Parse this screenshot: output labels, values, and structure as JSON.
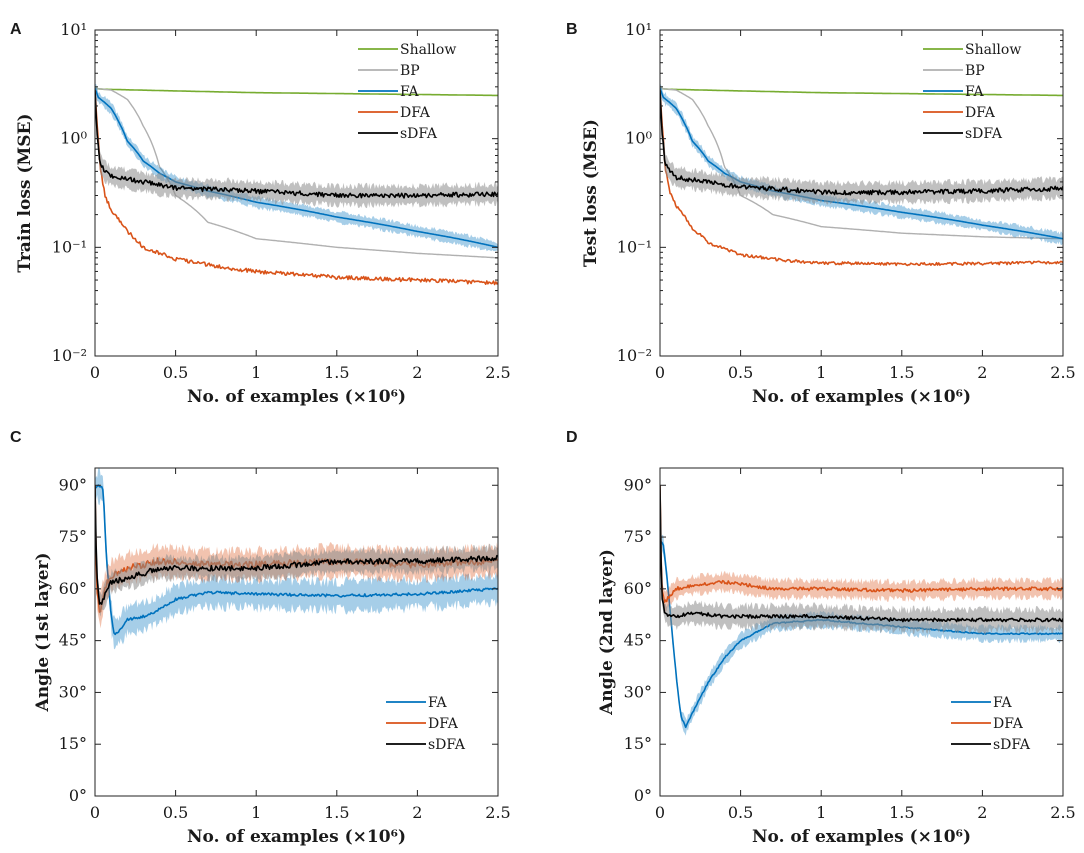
{
  "chart_data": [
    {
      "panel": "A",
      "type": "line",
      "yscale": "log",
      "xlabel": "No. of examples (×10⁶)",
      "ylabel": "Train loss (MSE)",
      "xlim": [
        0,
        2.5
      ],
      "ylim": [
        0.01,
        10
      ],
      "xticks": [
        0,
        0.5,
        1,
        1.5,
        2,
        2.5
      ],
      "xtick_labels": [
        "0",
        "0.5",
        "1",
        "1.5",
        "2",
        "2.5"
      ],
      "yticks": [
        0.01,
        0.1,
        1,
        10
      ],
      "ytick_labels": [
        "10⁻²",
        "10⁻¹",
        "10⁰",
        "10¹"
      ],
      "legend_position": "top-right",
      "series": [
        {
          "name": "Shallow",
          "color": "#77ac30",
          "x": [
            0,
            0.05,
            0.5,
            1,
            1.5,
            2,
            2.5
          ],
          "y": [
            2.9,
            2.85,
            2.75,
            2.65,
            2.6,
            2.55,
            2.5
          ],
          "band": 0,
          "noise": 0
        },
        {
          "name": "BP",
          "color": "#b0b0b0",
          "x": [
            0,
            0.1,
            0.2,
            0.3,
            0.4,
            0.5,
            0.7,
            1,
            1.5,
            2,
            2.5
          ],
          "y": [
            2.9,
            2.8,
            2.3,
            1.3,
            0.55,
            0.3,
            0.17,
            0.12,
            0.1,
            0.088,
            0.08
          ],
          "band": 0,
          "noise": 0
        },
        {
          "name": "FA",
          "color": "#0072bd",
          "x": [
            0,
            0.02,
            0.1,
            0.15,
            0.2,
            0.3,
            0.4,
            0.5,
            0.7,
            1,
            1.5,
            2,
            2.5
          ],
          "y": [
            2.9,
            2.4,
            1.9,
            1.4,
            0.95,
            0.62,
            0.48,
            0.4,
            0.33,
            0.26,
            0.19,
            0.14,
            0.1
          ],
          "band": 0.12,
          "noise": 0
        },
        {
          "name": "DFA",
          "color": "#d95319",
          "x": [
            0,
            0.01,
            0.03,
            0.06,
            0.1,
            0.2,
            0.3,
            0.5,
            0.8,
            1,
            1.5,
            2,
            2.5
          ],
          "y": [
            2.8,
            1.5,
            0.55,
            0.3,
            0.22,
            0.14,
            0.1,
            0.078,
            0.065,
            0.06,
            0.053,
            0.05,
            0.047
          ],
          "band": 0,
          "noise": 0.04
        },
        {
          "name": "sDFA",
          "color": "#000000",
          "x": [
            0,
            0.01,
            0.03,
            0.06,
            0.1,
            0.3,
            0.5,
            0.8,
            1,
            1.5,
            2,
            2.5
          ],
          "y": [
            2.8,
            1.2,
            0.6,
            0.5,
            0.45,
            0.4,
            0.35,
            0.34,
            0.33,
            0.3,
            0.3,
            0.31
          ],
          "band": 0.22,
          "noise": 0.05
        }
      ]
    },
    {
      "panel": "B",
      "type": "line",
      "yscale": "log",
      "xlabel": "No. of examples (×10⁶)",
      "ylabel": "Test loss (MSE)",
      "xlim": [
        0,
        2.5
      ],
      "ylim": [
        0.01,
        10
      ],
      "xticks": [
        0,
        0.5,
        1,
        1.5,
        2,
        2.5
      ],
      "xtick_labels": [
        "0",
        "0.5",
        "1",
        "1.5",
        "2",
        "2.5"
      ],
      "yticks": [
        0.01,
        0.1,
        1,
        10
      ],
      "ytick_labels": [
        "10⁻²",
        "10⁻¹",
        "10⁰",
        "10¹"
      ],
      "legend_position": "top-right",
      "series": [
        {
          "name": "Shallow",
          "color": "#77ac30",
          "x": [
            0,
            0.05,
            0.5,
            1,
            1.5,
            2,
            2.5
          ],
          "y": [
            2.9,
            2.85,
            2.75,
            2.65,
            2.6,
            2.55,
            2.5
          ],
          "band": 0,
          "noise": 0
        },
        {
          "name": "BP",
          "color": "#b0b0b0",
          "x": [
            0,
            0.1,
            0.2,
            0.3,
            0.4,
            0.5,
            0.7,
            1,
            1.5,
            2,
            2.5
          ],
          "y": [
            2.9,
            2.8,
            2.3,
            1.3,
            0.55,
            0.3,
            0.2,
            0.155,
            0.135,
            0.125,
            0.12
          ],
          "band": 0,
          "noise": 0
        },
        {
          "name": "FA",
          "color": "#0072bd",
          "x": [
            0,
            0.02,
            0.1,
            0.15,
            0.2,
            0.3,
            0.4,
            0.5,
            0.7,
            1,
            1.5,
            2,
            2.5
          ],
          "y": [
            2.9,
            2.4,
            1.9,
            1.4,
            0.95,
            0.62,
            0.48,
            0.4,
            0.33,
            0.27,
            0.21,
            0.16,
            0.12
          ],
          "band": 0.12,
          "noise": 0
        },
        {
          "name": "DFA",
          "color": "#d95319",
          "x": [
            0,
            0.01,
            0.03,
            0.06,
            0.1,
            0.2,
            0.3,
            0.5,
            0.8,
            1,
            1.5,
            2,
            2.5
          ],
          "y": [
            2.8,
            1.5,
            0.55,
            0.32,
            0.24,
            0.15,
            0.11,
            0.085,
            0.075,
            0.072,
            0.07,
            0.071,
            0.073
          ],
          "band": 0,
          "noise": 0.03
        },
        {
          "name": "sDFA",
          "color": "#000000",
          "x": [
            0,
            0.01,
            0.03,
            0.06,
            0.1,
            0.3,
            0.5,
            0.8,
            1,
            1.5,
            2,
            2.5
          ],
          "y": [
            2.8,
            1.2,
            0.6,
            0.5,
            0.44,
            0.4,
            0.36,
            0.34,
            0.32,
            0.32,
            0.33,
            0.35
          ],
          "band": 0.22,
          "noise": 0.05
        }
      ]
    },
    {
      "panel": "C",
      "type": "line",
      "yscale": "linear",
      "xlabel": "No. of examples (×10⁶)",
      "ylabel": "Angle (1st layer)",
      "xlim": [
        0,
        2.5
      ],
      "ylim": [
        0,
        95
      ],
      "xticks": [
        0,
        0.5,
        1,
        1.5,
        2,
        2.5
      ],
      "xtick_labels": [
        "0",
        "0.5",
        "1",
        "1.5",
        "2",
        "2.5"
      ],
      "yticks": [
        0,
        15,
        30,
        45,
        60,
        75,
        90
      ],
      "ytick_labels": [
        "0°",
        "15°",
        "30°",
        "45°",
        "60°",
        "75°",
        "90°"
      ],
      "legend_position": "bottom-right",
      "series": [
        {
          "name": "FA",
          "color": "#0072bd",
          "x": [
            0,
            0.02,
            0.05,
            0.07,
            0.1,
            0.12,
            0.15,
            0.2,
            0.3,
            0.4,
            0.5,
            0.7,
            1,
            1.5,
            2,
            2.5
          ],
          "y": [
            89,
            90,
            89,
            70,
            52,
            47,
            48,
            51,
            52,
            54,
            57,
            59,
            58.5,
            58,
            58.5,
            60
          ],
          "band": 4,
          "noise": 0.4
        },
        {
          "name": "DFA",
          "color": "#d95319",
          "x": [
            0,
            0.01,
            0.03,
            0.06,
            0.1,
            0.2,
            0.4,
            0.7,
            1,
            1.5,
            2,
            2.5
          ],
          "y": [
            90,
            60,
            53,
            60,
            64,
            66,
            68,
            67,
            67,
            68,
            67,
            68
          ],
          "band": 4,
          "noise": 1
        },
        {
          "name": "sDFA",
          "color": "#000000",
          "x": [
            0,
            0.01,
            0.03,
            0.06,
            0.1,
            0.2,
            0.4,
            0.7,
            1,
            1.5,
            2,
            2.5
          ],
          "y": [
            90,
            65,
            55,
            58,
            62,
            63,
            66,
            66,
            66,
            68,
            68,
            69
          ],
          "band": 3,
          "noise": 0.8
        }
      ]
    },
    {
      "panel": "D",
      "type": "line",
      "yscale": "linear",
      "xlabel": "No. of examples (×10⁶)",
      "ylabel": "Angle (2nd layer)",
      "xlim": [
        0,
        2.5
      ],
      "ylim": [
        0,
        95
      ],
      "xticks": [
        0,
        0.5,
        1,
        1.5,
        2,
        2.5
      ],
      "xtick_labels": [
        "0",
        "0.5",
        "1",
        "1.5",
        "2",
        "2.5"
      ],
      "yticks": [
        0,
        15,
        30,
        45,
        60,
        75,
        90
      ],
      "ytick_labels": [
        "0°",
        "15°",
        "30°",
        "45°",
        "60°",
        "75°",
        "90°"
      ],
      "legend_position": "bottom-right",
      "series": [
        {
          "name": "FA",
          "color": "#0072bd",
          "x": [
            0,
            0.02,
            0.04,
            0.07,
            0.1,
            0.13,
            0.16,
            0.2,
            0.3,
            0.4,
            0.5,
            0.7,
            1,
            1.5,
            2,
            2.5
          ],
          "y": [
            74,
            73,
            65,
            50,
            35,
            23,
            20,
            24,
            33,
            40,
            45,
            50,
            51,
            49,
            47,
            47
          ],
          "band": 2,
          "noise": 0.2
        },
        {
          "name": "DFA",
          "color": "#d95319",
          "x": [
            0,
            0.01,
            0.03,
            0.06,
            0.1,
            0.2,
            0.4,
            0.7,
            1,
            1.5,
            2,
            2.5
          ],
          "y": [
            90,
            60,
            56,
            58,
            60,
            61,
            62,
            60,
            60,
            59.5,
            60,
            60
          ],
          "band": 2.5,
          "noise": 0.5
        },
        {
          "name": "sDFA",
          "color": "#000000",
          "x": [
            0,
            0.01,
            0.03,
            0.06,
            0.1,
            0.2,
            0.4,
            0.7,
            1,
            1.5,
            2,
            2.5
          ],
          "y": [
            90,
            58,
            53,
            52,
            52,
            53,
            52,
            52,
            52,
            51,
            51,
            51
          ],
          "band": 3,
          "noise": 0.5
        }
      ]
    }
  ]
}
